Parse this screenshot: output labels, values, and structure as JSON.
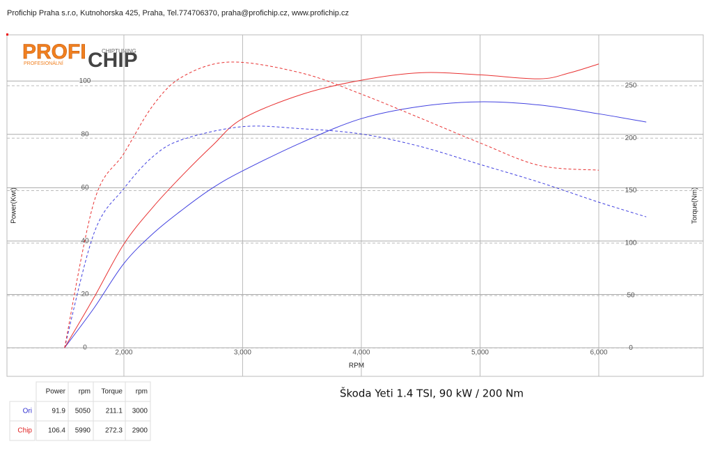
{
  "header": {
    "title": "Profichip Praha s.r.o, Kutnohorska 425, Praha, Tel.774706370, praha@profichip.cz, www.profichip.cz"
  },
  "logo": {
    "word1": "PROFI",
    "word2": "CHIP",
    "tag1": "CHIPTUNING",
    "tag2": "PROFESIONÁLNÍ"
  },
  "chart_data": {
    "type": "line",
    "xlabel": "RPM",
    "ylabel": "Power(Kwt)",
    "y2label": "Torque(Nm)",
    "xlim": [
      1015,
      6880
    ],
    "ylim": [
      -10.7,
      117.3
    ],
    "y2lim": [
      -27,
      298.5
    ],
    "xticks": [
      {
        "value": 2000,
        "label": "2,000"
      },
      {
        "value": 3000,
        "label": "3,000"
      },
      {
        "value": 4000,
        "label": "4,000"
      },
      {
        "value": 5000,
        "label": "5,000"
      },
      {
        "value": 6000,
        "label": "6,000"
      }
    ],
    "yticks": [
      0,
      20,
      40,
      60,
      80,
      100
    ],
    "y2ticks": [
      0,
      50,
      100,
      150,
      200,
      250
    ],
    "grid": true,
    "series": [
      {
        "color": "#4040e0",
        "dash": false,
        "axis": "y",
        "x": [
          1500,
          1750,
          2000,
          2250,
          2500,
          2750,
          3000,
          3500,
          4000,
          4500,
          5000,
          5500,
          6000,
          6400
        ],
        "values": [
          0,
          15,
          31.6,
          43,
          52,
          60,
          66.3,
          77,
          85.9,
          90.5,
          92.2,
          91,
          87.7,
          84.6
        ]
      },
      {
        "color": "#e83030",
        "dash": false,
        "axis": "y",
        "x": [
          1500,
          1750,
          2000,
          2250,
          2500,
          2750,
          3000,
          3500,
          4000,
          4500,
          5000,
          5500,
          5750,
          6000
        ],
        "values": [
          0,
          19,
          38.9,
          53,
          65,
          76,
          85.9,
          95,
          100.3,
          103.1,
          102.3,
          100.8,
          103,
          106.4
        ]
      },
      {
        "color": "#4040e0",
        "dash": true,
        "axis": "y2",
        "x": [
          1500,
          1750,
          2000,
          2250,
          2500,
          3000,
          3500,
          4000,
          4500,
          5000,
          5500,
          6000,
          6400
        ],
        "values": [
          0,
          110,
          152,
          183,
          199,
          211,
          209,
          204,
          192,
          175,
          158,
          139,
          125
        ]
      },
      {
        "color": "#e83030",
        "dash": true,
        "axis": "y2",
        "x": [
          1500,
          1750,
          2000,
          2250,
          2500,
          2900,
          3500,
          4000,
          4500,
          5000,
          5500,
          6000
        ],
        "values": [
          0,
          140,
          185.5,
          232,
          259,
          272.6,
          262,
          242,
          219,
          195.5,
          174,
          169.5
        ]
      }
    ]
  },
  "subtitle": "Škoda Yeti 1.4 TSI, 90 kW / 200 Nm",
  "table": {
    "columns": [
      "Power",
      "rpm",
      "Torque",
      "rpm"
    ],
    "rows": [
      {
        "label": "Ori",
        "color": "#3030d0",
        "cells": [
          91.9,
          5050,
          211.1,
          3000
        ]
      },
      {
        "label": "Chip",
        "color": "#e02020",
        "cells": [
          106.4,
          5990,
          272.3,
          2900
        ]
      }
    ]
  }
}
